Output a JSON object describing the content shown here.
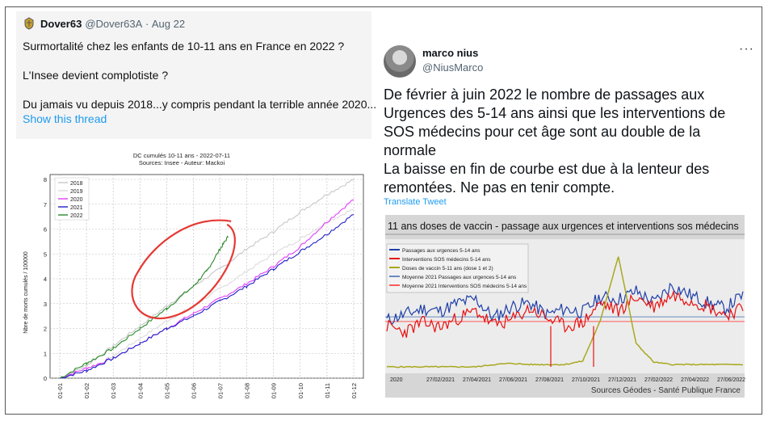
{
  "left_tweet": {
    "author_name": "Dover63",
    "handle": "@Dover63A",
    "date": "Aug 22",
    "lines": [
      "Surmortalité chez les enfants de 10-11 ans en France en 2022 ?",
      "L'Insee devient complotiste ?",
      "Du jamais vu depuis 2018...y compris pendant la terrible année 2020..."
    ],
    "show_thread": "Show this thread",
    "chart_data": {
      "type": "line",
      "title": "DC cumulés 10-11 ans  - 2022-07-11",
      "subtitle": "Sources: Insee - Auteur: Mackoi",
      "ylabel": "Nbre de morts cumulés / 100000",
      "ylim": [
        0,
        8
      ],
      "yticks": [
        "0",
        "1",
        "2",
        "3",
        "4",
        "5",
        "6",
        "7",
        "8"
      ],
      "xticks": [
        "01-01",
        "01-02",
        "01-03",
        "01-04",
        "01-05",
        "01-06",
        "01-07",
        "01-08",
        "01-09",
        "01-10",
        "01-11",
        "01-12"
      ],
      "grid": true,
      "legend_position": "top-left",
      "series": [
        {
          "name": "2018",
          "color": "#c8c8c8",
          "points": [
            [
              0,
              0
            ],
            [
              1,
              0.5
            ],
            [
              2,
              1.3
            ],
            [
              3,
              2.1
            ],
            [
              4,
              2.9
            ],
            [
              5,
              3.7
            ],
            [
              6,
              4.4
            ],
            [
              7,
              5.2
            ],
            [
              8,
              5.9
            ],
            [
              9,
              6.7
            ],
            [
              10,
              7.4
            ],
            [
              11,
              8.0
            ]
          ]
        },
        {
          "name": "2019",
          "color": "#dcdcdc",
          "points": [
            [
              0,
              0
            ],
            [
              1,
              0.3
            ],
            [
              2,
              0.9
            ],
            [
              3,
              1.6
            ],
            [
              4,
              2.3
            ],
            [
              5,
              2.9
            ],
            [
              6,
              3.6
            ],
            [
              7,
              4.3
            ],
            [
              8,
              5.0
            ],
            [
              9,
              5.6
            ],
            [
              10,
              6.3
            ],
            [
              11,
              6.8
            ]
          ]
        },
        {
          "name": "2020",
          "color": "#e040fb",
          "points": [
            [
              0,
              0
            ],
            [
              1,
              0.4
            ],
            [
              2,
              0.8
            ],
            [
              3,
              1.4
            ],
            [
              4,
              2.0
            ],
            [
              5,
              2.6
            ],
            [
              6,
              3.2
            ],
            [
              7,
              3.8
            ],
            [
              8,
              4.5
            ],
            [
              9,
              5.3
            ],
            [
              10,
              6.3
            ],
            [
              11,
              7.2
            ]
          ]
        },
        {
          "name": "2021",
          "color": "#2020c8",
          "points": [
            [
              0,
              0
            ],
            [
              1,
              0.3
            ],
            [
              2,
              0.8
            ],
            [
              3,
              1.4
            ],
            [
              4,
              2.0
            ],
            [
              5,
              2.5
            ],
            [
              6,
              3.1
            ],
            [
              7,
              3.7
            ],
            [
              8,
              4.4
            ],
            [
              9,
              5.1
            ],
            [
              10,
              5.8
            ],
            [
              11,
              6.6
            ]
          ]
        },
        {
          "name": "2022",
          "color": "#2a8a2a",
          "points": [
            [
              0,
              0
            ],
            [
              1,
              0.6
            ],
            [
              2,
              1.2
            ],
            [
              3,
              2.0
            ],
            [
              4,
              2.8
            ],
            [
              5,
              3.7
            ],
            [
              5.5,
              4.3
            ],
            [
              6,
              5.2
            ],
            [
              6.3,
              5.7
            ]
          ]
        }
      ],
      "highlight_color": "#e53935"
    }
  },
  "right_tweet": {
    "author_name": "marco nius",
    "handle": "@NiusMarco",
    "more": "···",
    "lines": [
      "De février à juin 2022 le nombre de passages aux",
      "Urgences des 5-14 ans ainsi que les interventions de",
      "SOS médecins pour cet âge sont au double de la",
      "normale",
      "La baisse en fin de courbe est due à la lenteur des",
      "remontées. Ne pas en tenir compte."
    ],
    "translate": "Translate Tweet",
    "chart_data": {
      "type": "line",
      "title": "11 ans doses de vaccin - passage aux urgences et interventions sos médecins",
      "source": "Sources Géodes - Santé Publique France",
      "xticks": [
        "2020",
        "27/02/2021",
        "27/04/2021",
        "27/06/2021",
        "27/08/2021",
        "27/10/2021",
        "27/12/2021",
        "27/02/2022",
        "27/04/2022",
        "27/06/2022"
      ],
      "legend_position": "top-left",
      "series": [
        {
          "name": "Passages aux urgences 5-14 ans",
          "color": "#1f3fa8",
          "values": [
            0.4,
            0.45,
            0.5,
            0.48,
            0.55,
            0.58,
            0.42,
            0.52,
            0.55,
            0.45,
            0.5,
            0.47,
            0.6,
            0.58,
            0.65,
            0.55,
            0.7,
            0.62,
            0.55,
            0.5,
            0.62
          ]
        },
        {
          "name": "Interventions SOS médecins 5-14 ans",
          "color": "#e81010",
          "values": [
            0.35,
            0.3,
            0.38,
            0.34,
            0.42,
            0.48,
            0.36,
            0.4,
            0.5,
            0.42,
            0.35,
            0.38,
            0.55,
            0.48,
            0.6,
            0.52,
            0.62,
            0.58,
            0.52,
            0.45,
            0.5
          ]
        },
        {
          "name": "Doses de vaccin 5-11 ans (dose 1 et 2)",
          "color": "#a8a820",
          "values": [
            0,
            0,
            0,
            0,
            0,
            0,
            0.02,
            0.03,
            0.02,
            0.02,
            0.02,
            0.05,
            0.4,
            0.95,
            0.2,
            0.04,
            0.02,
            0.02,
            0.02,
            0.02,
            0.02
          ]
        },
        {
          "name": "Moyenne 2021 Passages aux urgences 5-14 ans",
          "color": "#6a8ac0",
          "values": [
            0.43
          ]
        },
        {
          "name": "Moyenne 2021 Interventions SOS médecins 5-14 ans",
          "color": "#ff5a5a",
          "values": [
            0.39
          ]
        }
      ]
    }
  }
}
